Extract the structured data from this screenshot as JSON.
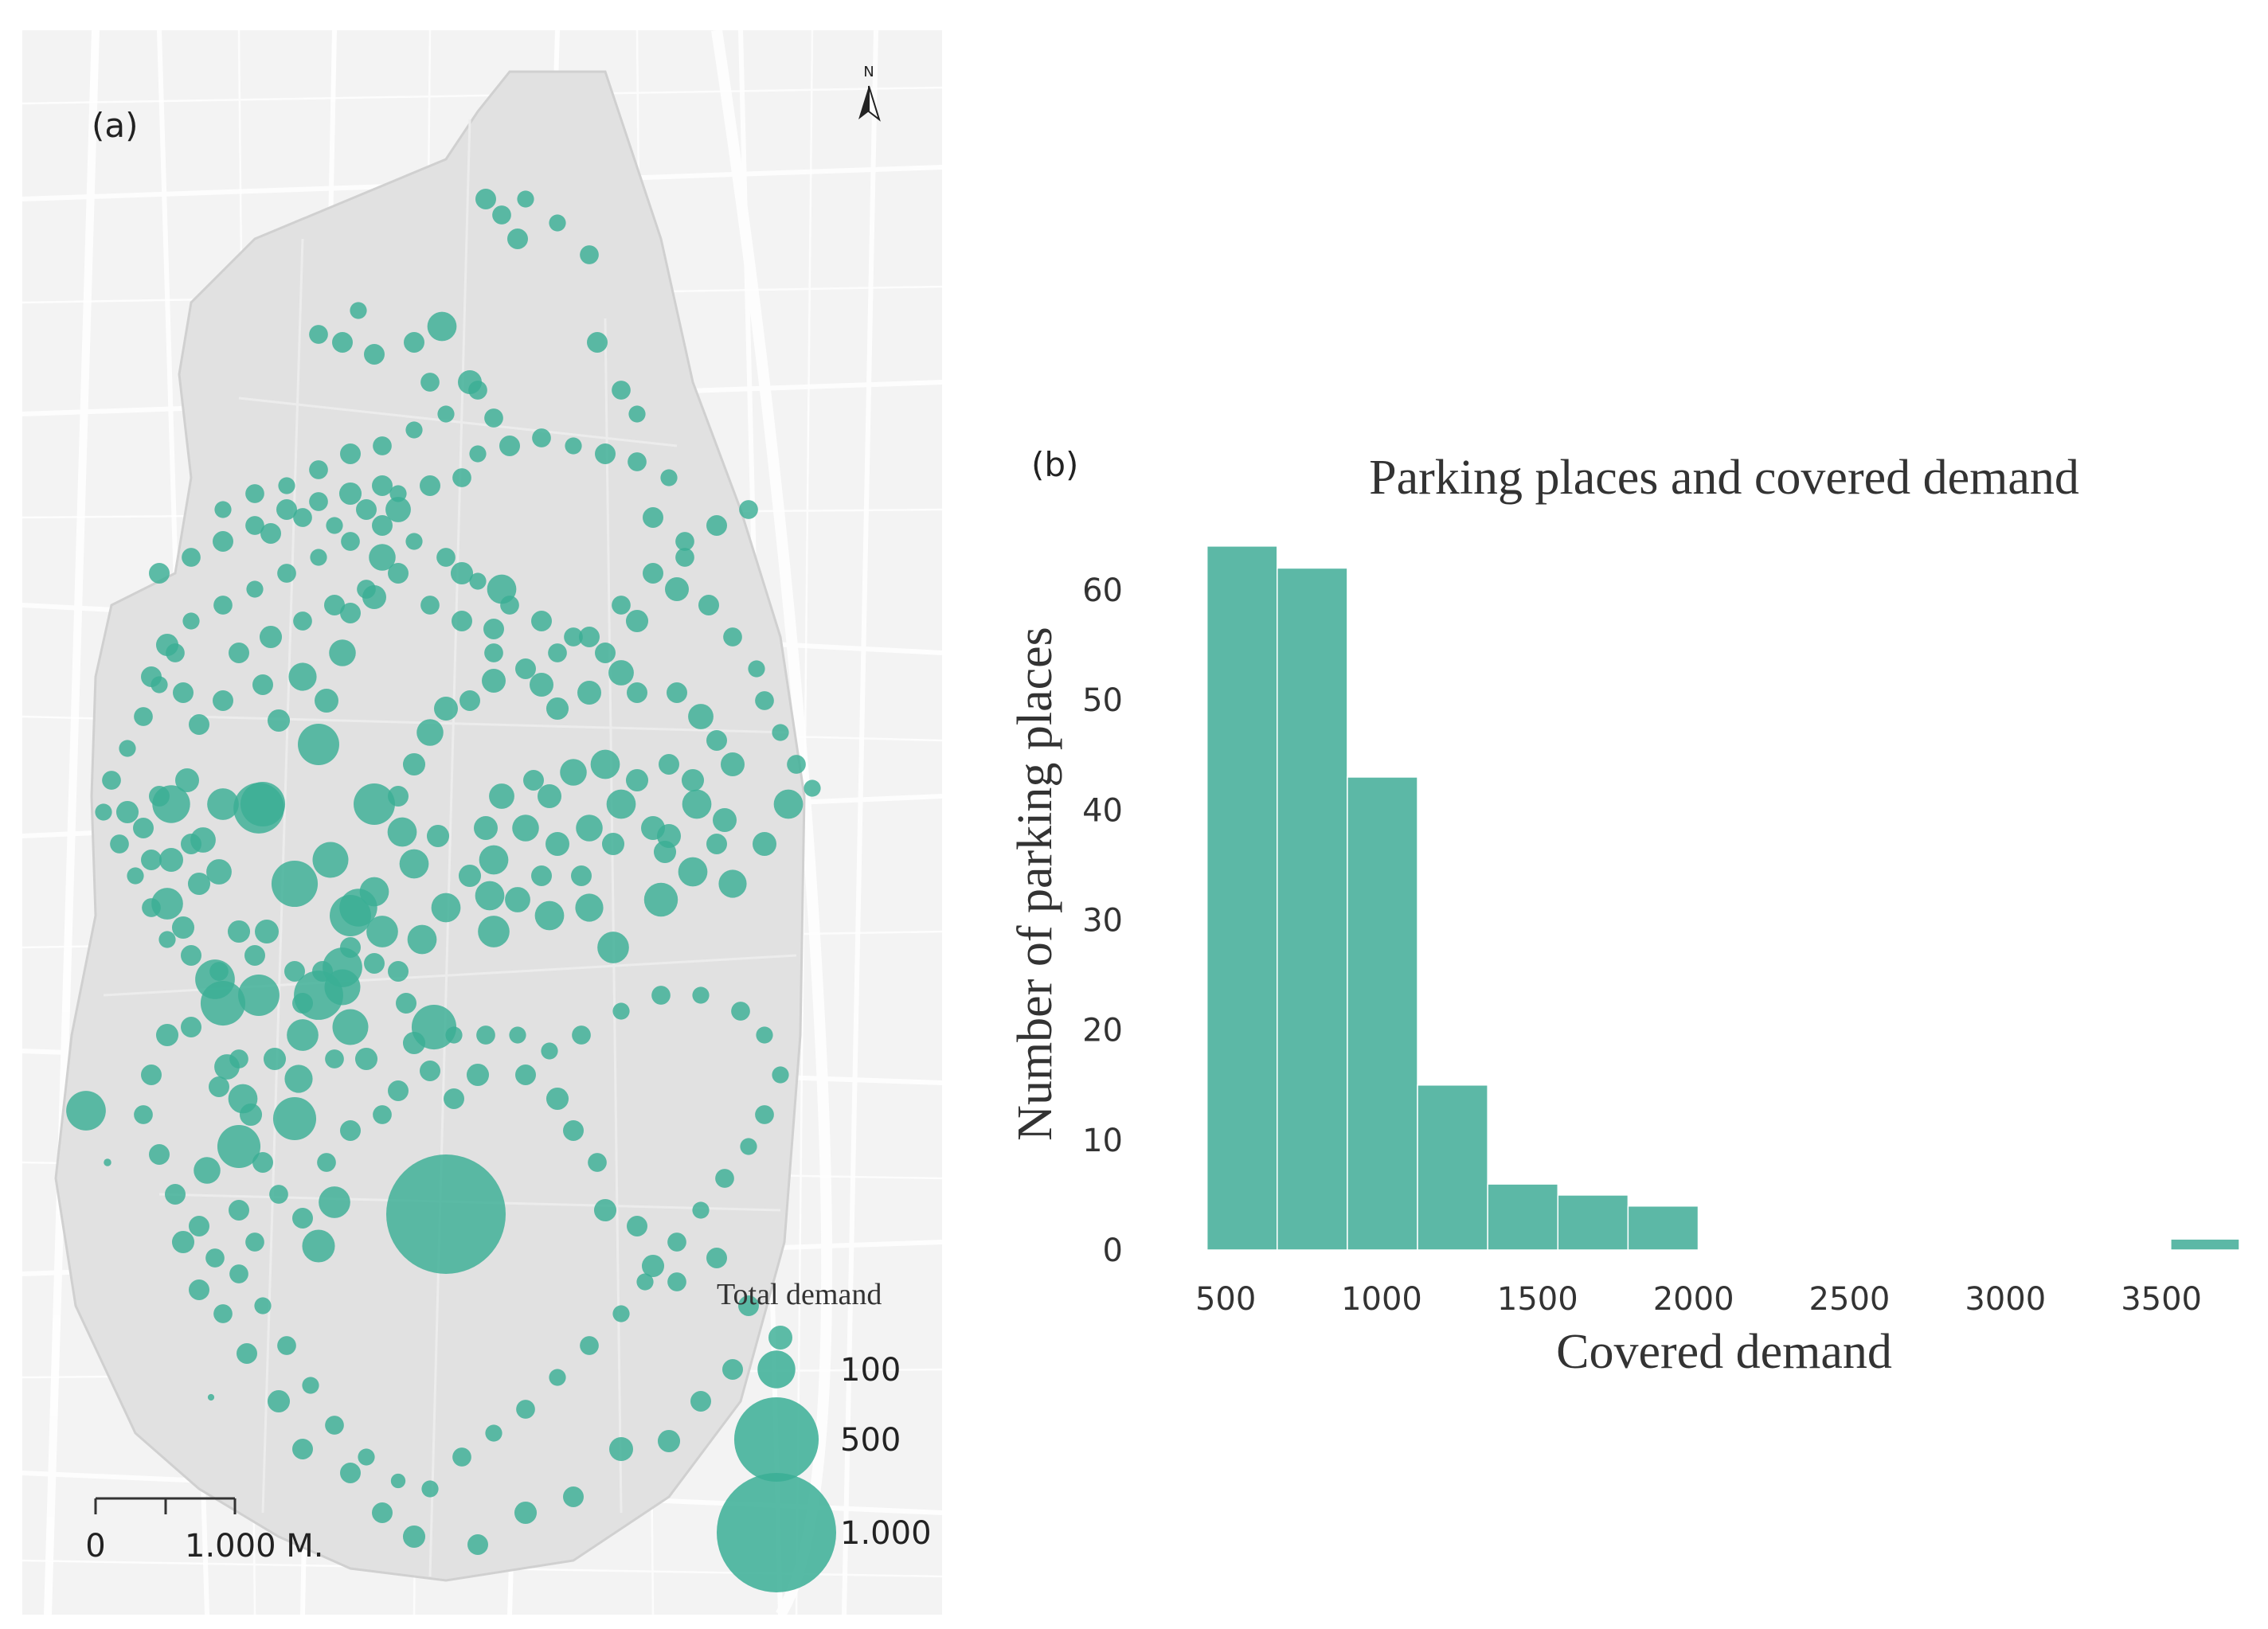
{
  "map": {
    "panel_label": "(a)",
    "north_label": "N",
    "legend_title": "Total demand",
    "legend_items": [
      {
        "label": "100",
        "value": 100
      },
      {
        "label": "500",
        "value": 500
      },
      {
        "label": "1.000",
        "value": 1000
      }
    ],
    "scale_start": "0",
    "scale_end": "1.000 M.",
    "marker_color": "#3aae95"
  },
  "chart_data": {
    "type": "bar",
    "panel_label": "(b)",
    "title": "Parking places and covered demand",
    "xlabel": "Covered demand",
    "ylabel": "Number of parking places",
    "bar_color": "#5cb8a6",
    "xlim": [
      400,
      3750
    ],
    "ylim": [
      0,
      65
    ],
    "xticks": [
      500,
      1000,
      1500,
      2000,
      2500,
      3000,
      3500
    ],
    "yticks": [
      0,
      10,
      20,
      30,
      40,
      50,
      60
    ],
    "bins": [
      {
        "from": 440,
        "to": 665,
        "count": 64
      },
      {
        "from": 665,
        "to": 890,
        "count": 62
      },
      {
        "from": 890,
        "to": 1115,
        "count": 43
      },
      {
        "from": 1115,
        "to": 1340,
        "count": 15
      },
      {
        "from": 1340,
        "to": 1565,
        "count": 6
      },
      {
        "from": 1565,
        "to": 1790,
        "count": 5
      },
      {
        "from": 1790,
        "to": 2015,
        "count": 4
      },
      {
        "from": 3530,
        "to": 3750,
        "count": 1
      }
    ]
  }
}
